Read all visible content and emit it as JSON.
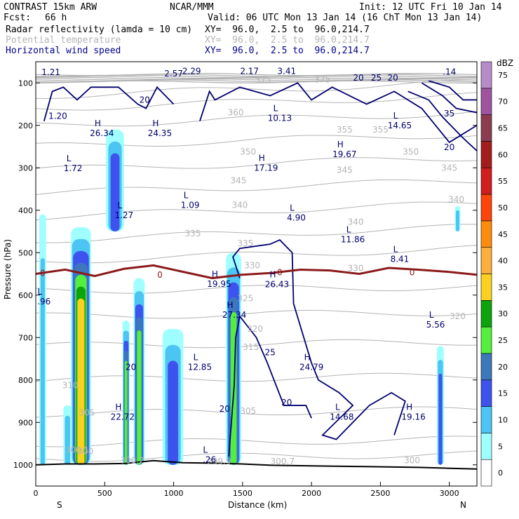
{
  "header": {
    "model": "CONTRAST 15km ARW",
    "org": "NCAR/MMM",
    "init": "Init: 12 UTC Fri 10 Jan 14",
    "fcst_label": "Fcst:",
    "fcst_value": "66 h",
    "valid": "Valid: 06 UTC Mon 13 Jan 14 (16 ChT Mon 13 Jan 14)",
    "fields": [
      {
        "name": "Radar reflectivity (lamda = 10 cm)",
        "xy": "XY=  96.0,  2.5 to  96.0,214.7",
        "color": "#000000"
      },
      {
        "name": "Potential temperature",
        "xy": "XY=  96.0,  2.5 to  96.0,214.7",
        "color": "#b4b4b4"
      },
      {
        "name": "Horizontal wind speed",
        "xy": "XY=  96.0,  2.5 to  96.0,214.7",
        "color": "#00008c"
      }
    ]
  },
  "colors": {
    "theta": "#b4b4b4",
    "wind": "#00006e",
    "freezing": "#8b1a1a",
    "terrain": "#000000"
  },
  "chart_data": {
    "type": "heatmap",
    "xlabel": "Distance (km)",
    "ylabel": "Pressure (hPa)",
    "xlim": [
      0,
      3200
    ],
    "ylim": [
      1050,
      50
    ],
    "x_ticks": [
      0,
      500,
      1000,
      1500,
      2000,
      2500,
      3000
    ],
    "y_ticks": [
      100,
      200,
      300,
      400,
      500,
      600,
      700,
      800,
      900,
      1000
    ],
    "endpoints": {
      "left": "S",
      "right": "N"
    },
    "colorbar": {
      "unit": "dBZ",
      "levels": [
        0,
        5,
        10,
        15,
        20,
        25,
        30,
        35,
        40,
        45,
        50,
        55,
        60,
        65,
        70,
        75
      ],
      "colors": [
        "#ffffff",
        "#9ffeff",
        "#4cc4f4",
        "#3e53ee",
        "#3d78ba",
        "#54ee3e",
        "#0ca30c",
        "#fbd020",
        "#fbb03d",
        "#fb8c0c",
        "#fb450c",
        "#d11d1d",
        "#a41d1d",
        "#8c3c50",
        "#a054a0",
        "#b78bc8"
      ]
    },
    "reflectivity_cells": [
      {
        "x_range": [
          25,
          75
        ],
        "p_range": [
          1000,
          410
        ],
        "max_dbz": 10
      },
      {
        "x_range": [
          200,
          260
        ],
        "p_range": [
          1000,
          860
        ],
        "max_dbz": 10
      },
      {
        "x_range": [
          255,
          400
        ],
        "p_range": [
          1000,
          440
        ],
        "max_dbz": 35
      },
      {
        "x_range": [
          510,
          640
        ],
        "p_range": [
          450,
          210
        ],
        "max_dbz": 15
      },
      {
        "x_range": [
          630,
          680
        ],
        "p_range": [
          1000,
          660
        ],
        "max_dbz": 25
      },
      {
        "x_range": [
          710,
          790
        ],
        "p_range": [
          1000,
          560
        ],
        "max_dbz": 25
      },
      {
        "x_range": [
          920,
          1070
        ],
        "p_range": [
          1000,
          680
        ],
        "max_dbz": 15
      },
      {
        "x_range": [
          1380,
          1490
        ],
        "p_range": [
          1000,
          500
        ],
        "max_dbz": 25
      },
      {
        "x_range": [
          2910,
          2960
        ],
        "p_range": [
          1000,
          720
        ],
        "max_dbz": 15
      },
      {
        "x_range": [
          3040,
          3080
        ],
        "p_range": [
          450,
          390
        ],
        "max_dbz": 10
      }
    ],
    "theta_labels": [
      {
        "text": "375",
        "x": 2080,
        "p": 92
      },
      {
        "text": "375",
        "x": 1650,
        "p": 92
      },
      {
        "text": "360",
        "x": 1450,
        "p": 170
      },
      {
        "text": "355",
        "x": 2240,
        "p": 210
      },
      {
        "text": "355",
        "x": 2500,
        "p": 210
      },
      {
        "text": "350",
        "x": 1540,
        "p": 262
      },
      {
        "text": "350",
        "x": 2720,
        "p": 262
      },
      {
        "text": "345",
        "x": 1470,
        "p": 330
      },
      {
        "text": "345",
        "x": 2240,
        "p": 305
      },
      {
        "text": "345",
        "x": 3000,
        "p": 300
      },
      {
        "text": "340",
        "x": 1480,
        "p": 388
      },
      {
        "text": "340",
        "x": 2320,
        "p": 428
      },
      {
        "text": "340",
        "x": 3050,
        "p": 375
      },
      {
        "text": "335",
        "x": 1140,
        "p": 455
      },
      {
        "text": "335",
        "x": 1520,
        "p": 478
      },
      {
        "text": "330",
        "x": 1570,
        "p": 530
      },
      {
        "text": "330",
        "x": 2320,
        "p": 537
      },
      {
        "text": "325",
        "x": 1520,
        "p": 608
      },
      {
        "text": "320",
        "x": 1590,
        "p": 680
      },
      {
        "text": "320",
        "x": 3060,
        "p": 650
      },
      {
        "text": "315",
        "x": 1560,
        "p": 723
      },
      {
        "text": "310",
        "x": 250,
        "p": 813
      },
      {
        "text": "305",
        "x": 370,
        "p": 877
      },
      {
        "text": "305",
        "x": 1540,
        "p": 873
      },
      {
        "text": "300",
        "x": 360,
        "p": 968
      },
      {
        "text": "300",
        "x": 2730,
        "p": 990
      },
      {
        "text": "300.1",
        "x": 300,
        "p": 965
      },
      {
        "text": "300.2",
        "x": 700,
        "p": 990
      },
      {
        "text": "299.9",
        "x": 1330,
        "p": 992
      },
      {
        "text": "300.7",
        "x": 1790,
        "p": 992
      }
    ],
    "wind_labels": [
      {
        "text": "20",
        "x": 2340,
        "p": 88
      },
      {
        "text": "25",
        "x": 2470,
        "p": 88
      },
      {
        "text": "20",
        "x": 2590,
        "p": 88
      },
      {
        "text": "20",
        "x": 790,
        "p": 140
      },
      {
        "text": "35",
        "x": 3000,
        "p": 172
      },
      {
        "text": "20",
        "x": 3000,
        "p": 252
      },
      {
        "text": "20",
        "x": 690,
        "p": 770
      },
      {
        "text": "20",
        "x": 1370,
        "p": 868
      },
      {
        "text": "25",
        "x": 1700,
        "p": 735
      },
      {
        "text": "20",
        "x": 1820,
        "p": 853
      }
    ],
    "wind_extrema": [
      {
        "kind": "",
        "value": "1.21",
        "x": 110,
        "p": 75
      },
      {
        "kind": "",
        "value": "2.57",
        "x": 1000,
        "p": 78
      },
      {
        "kind": "",
        "value": "2.29",
        "x": 1130,
        "p": 72
      },
      {
        "kind": "",
        "value": "2.17",
        "x": 1550,
        "p": 72
      },
      {
        "kind": "",
        "value": "3.41",
        "x": 1820,
        "p": 72
      },
      {
        "kind": "",
        "value": ".14",
        "x": 3000,
        "p": 74
      },
      {
        "kind": "",
        "value": "1.20",
        "x": 160,
        "p": 178
      },
      {
        "kind": "H",
        "value": "26.34",
        "x": 480,
        "p": 219
      },
      {
        "kind": "H",
        "value": "24.35",
        "x": 900,
        "p": 219
      },
      {
        "kind": "L",
        "value": "10.13",
        "x": 1770,
        "p": 183
      },
      {
        "kind": "L",
        "value": "14.65",
        "x": 2640,
        "p": 200
      },
      {
        "kind": "L",
        "value": "1.72",
        "x": 270,
        "p": 301
      },
      {
        "kind": "H",
        "value": "17.19",
        "x": 1670,
        "p": 300
      },
      {
        "kind": "H",
        "value": "19.67",
        "x": 2240,
        "p": 268
      },
      {
        "kind": "L",
        "value": "1.09",
        "x": 1120,
        "p": 388
      },
      {
        "kind": "L",
        "value": "1.27",
        "x": 640,
        "p": 412
      },
      {
        "kind": "L",
        "value": "4.90",
        "x": 1890,
        "p": 418
      },
      {
        "kind": "L",
        "value": "11.86",
        "x": 2300,
        "p": 469
      },
      {
        "kind": "L",
        "value": "8.41",
        "x": 2640,
        "p": 515
      },
      {
        "kind": "H",
        "value": "19.95",
        "x": 1330,
        "p": 574
      },
      {
        "kind": "H",
        "value": "26.43",
        "x": 1750,
        "p": 575
      },
      {
        "kind": "L",
        "value": ".96",
        "x": 60,
        "p": 615
      },
      {
        "kind": "H",
        "value": "27.34",
        "x": 1440,
        "p": 647
      },
      {
        "kind": "L",
        "value": "5.56",
        "x": 2900,
        "p": 670
      },
      {
        "kind": "L",
        "value": "12.85",
        "x": 1190,
        "p": 770
      },
      {
        "kind": "H",
        "value": "24.79",
        "x": 2000,
        "p": 770
      },
      {
        "kind": "H",
        "value": "22.72",
        "x": 630,
        "p": 887
      },
      {
        "kind": "L",
        "value": "14.68",
        "x": 2220,
        "p": 887
      },
      {
        "kind": "H",
        "value": "19.16",
        "x": 2740,
        "p": 887
      },
      {
        "kind": "L",
        "value": ".26",
        "x": 1260,
        "p": 988
      }
    ],
    "freezing_level_label": "0",
    "freezing_level_p": [
      550,
      540,
      555,
      538,
      530,
      545,
      560,
      552,
      548,
      540,
      542,
      550,
      536,
      540,
      545,
      552
    ],
    "terrain_p": [
      1000,
      998,
      998,
      997,
      990,
      995,
      996,
      998,
      1001,
      1002,
      1003,
      1004,
      1005,
      1006,
      1008,
      1010
    ]
  }
}
